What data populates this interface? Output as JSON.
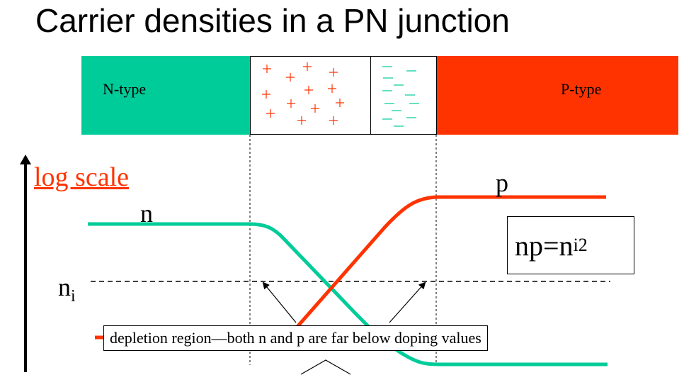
{
  "title": "Carrier densities in a PN junction",
  "bands": {
    "n_label": "N-type",
    "p_label": "P-type",
    "n_color": "#00cc99",
    "p_color": "#ff3300"
  },
  "axis": {
    "scale_label": "log scale"
  },
  "curves": {
    "n_label": "n",
    "p_label": "p",
    "ni_base": "n",
    "ni_sub": "i",
    "n_color": "#00cc99",
    "p_color": "#ff3300"
  },
  "equation": {
    "left": "np=n",
    "sub": "i",
    "sup": "2"
  },
  "caption": "depletion region—both n and p are far below doping values"
}
